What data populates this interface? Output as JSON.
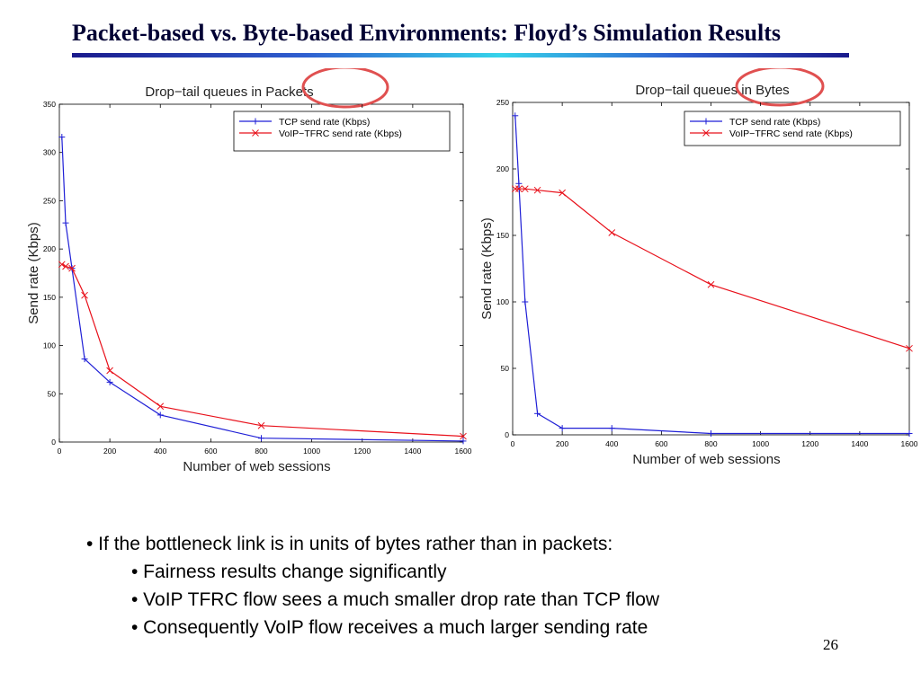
{
  "slide": {
    "title": "Packet-based vs. Byte-based Environments: Floyd’s Simulation Results",
    "page_number": "26",
    "bullets": [
      "• If the bottleneck link is in units of bytes rather than in packets:",
      "• Fairness results change significantly",
      "• VoIP TFRC flow sees a much smaller drop rate than TCP flow",
      "• Consequently VoIP flow receives a much larger sending rate"
    ]
  },
  "colors": {
    "tcp": "#1f1fd6",
    "voip": "#e8101a",
    "highlight": "#e05050",
    "title_rule": [
      "#1a1a8c",
      "#35d3ea"
    ]
  },
  "chart_data": [
    {
      "type": "line",
      "title": "Drop−tail queues in Packets",
      "highlight_word": "Packets",
      "xlabel": "Number of web sessions",
      "ylabel": "Send rate (Kbps)",
      "xlim": [
        0,
        1600
      ],
      "ylim": [
        0,
        350
      ],
      "xticks": [
        0,
        200,
        400,
        600,
        800,
        1000,
        1200,
        1400,
        1600
      ],
      "yticks": [
        0,
        50,
        100,
        150,
        200,
        250,
        300,
        350
      ],
      "grid": false,
      "legend": "top-right",
      "series": [
        {
          "name": "TCP send rate (Kbps)",
          "color": "#1f1fd6",
          "marker": "+",
          "x": [
            10,
            25,
            50,
            100,
            200,
            400,
            800,
            1600
          ],
          "y": [
            316,
            227,
            180,
            86,
            62,
            28,
            4,
            1
          ]
        },
        {
          "name": "VoIP−TFRC send rate (Kbps)",
          "color": "#e8101a",
          "marker": "x",
          "x": [
            10,
            25,
            50,
            100,
            200,
            400,
            800,
            1600
          ],
          "y": [
            184,
            182,
            180,
            152,
            74,
            37,
            17,
            6
          ]
        }
      ]
    },
    {
      "type": "line",
      "title": "Drop−tail queues in Bytes",
      "highlight_word": "in Bytes",
      "xlabel": "Number of web sessions",
      "ylabel": "Send rate (Kbps)",
      "xlim": [
        0,
        1600
      ],
      "ylim": [
        0,
        250
      ],
      "xticks": [
        0,
        200,
        400,
        600,
        800,
        1000,
        1200,
        1400,
        1600
      ],
      "yticks": [
        0,
        50,
        100,
        150,
        200,
        250
      ],
      "grid": false,
      "legend": "top-right",
      "series": [
        {
          "name": "TCP send rate (Kbps)",
          "color": "#1f1fd6",
          "marker": "+",
          "x": [
            10,
            25,
            50,
            100,
            200,
            400,
            800,
            1600
          ],
          "y": [
            240,
            189,
            100,
            16,
            5,
            5,
            1,
            1
          ]
        },
        {
          "name": "VoIP−TFRC send rate (Kbps)",
          "color": "#e8101a",
          "marker": "x",
          "x": [
            10,
            25,
            50,
            100,
            200,
            400,
            800,
            1600
          ],
          "y": [
            185,
            185,
            185,
            184,
            182,
            152,
            113,
            65
          ]
        }
      ]
    }
  ]
}
